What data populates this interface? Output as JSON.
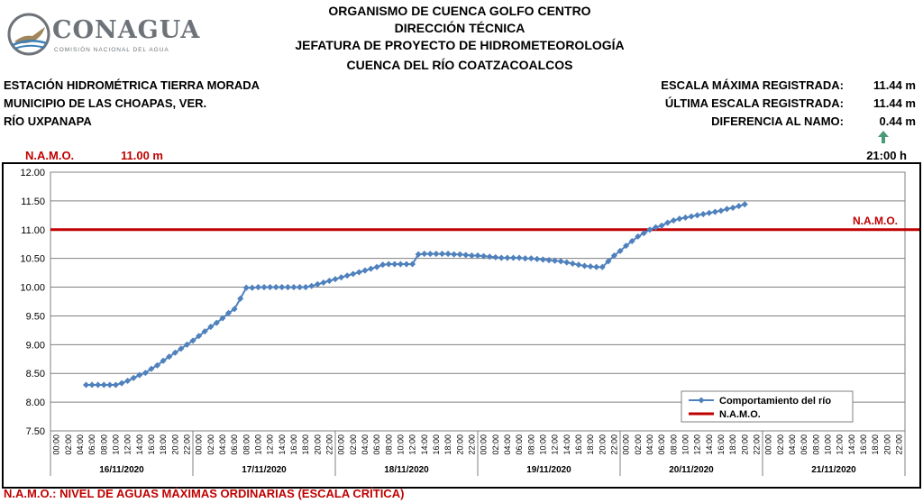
{
  "header": {
    "line1": "ORGANISMO DE CUENCA GOLFO CENTRO",
    "line2": "DIRECCIÓN TÉCNICA",
    "line3": "JEFATURA DE PROYECTO DE HIDROMETEOROLOGÍA",
    "line4": "CUENCA DEL RÍO COATZACOALCOS"
  },
  "logo": {
    "name": "CONAGUA",
    "subtitle": "COMISIÓN NACIONAL DEL AGUA",
    "icon": "conagua-bird-logo"
  },
  "station": {
    "name": "ESTACIÓN HIDROMÉTRICA TIERRA MORADA",
    "municipality": "MUNICIPIO DE LAS CHOAPAS, VER.",
    "river": "RÍO UXPANAPA"
  },
  "stats": {
    "max_label": "ESCALA MÁXIMA REGISTRADA:",
    "max_value": "11.44 m",
    "last_label": "ÚLTIMA ESCALA REGISTRADA:",
    "last_value": "11.44 m",
    "diff_label": "DIFERENCIA AL NAMO:",
    "diff_value": "0.44 m",
    "trend_icon": "arrow-up-icon",
    "time": "21:00 h"
  },
  "namo": {
    "label": "N.A.M.O.",
    "value": "11.00 m"
  },
  "footer": "N.A.M.O.: NIVEL DE AGUAS MÁXIMAS ORDINARIAS (ESCALA CRÍTICA)",
  "colors": {
    "series": "#4f81bd",
    "namo": "#c00000",
    "arrow": "#4a9a7a"
  },
  "chart_data": {
    "type": "line",
    "ylim": [
      7.5,
      12.0
    ],
    "yticks": [
      "7.50",
      "8.00",
      "8.50",
      "9.00",
      "9.50",
      "10.00",
      "10.50",
      "11.00",
      "11.50",
      "12.00"
    ],
    "hour_labels": [
      "00:00",
      "02:00",
      "04:00",
      "06:00",
      "08:00",
      "10:00",
      "12:00",
      "14:00",
      "16:00",
      "18:00",
      "20:00",
      "22:00"
    ],
    "dates": [
      "16/11/2020",
      "17/11/2020",
      "18/11/2020",
      "19/11/2020",
      "20/11/2020",
      "21/11/2020"
    ],
    "legend": {
      "position": "bottom-right",
      "series_label": "Comportamiento del río",
      "namo_label": "N.A.M.O."
    },
    "namo_line": {
      "label": "N.A.M.O.",
      "value": 11.0
    },
    "grid": true,
    "series": {
      "name": "Comportamiento del río",
      "start": "16/11/2020 06:00",
      "interval_hours": 1,
      "values": [
        8.3,
        8.3,
        8.3,
        8.3,
        8.3,
        8.3,
        8.33,
        8.37,
        8.42,
        8.47,
        8.51,
        8.58,
        8.64,
        8.72,
        8.79,
        8.86,
        8.93,
        9.0,
        9.07,
        9.15,
        9.23,
        9.31,
        9.38,
        9.46,
        9.55,
        9.62,
        9.8,
        9.99,
        9.99,
        10.0,
        10.0,
        10.0,
        10.0,
        10.0,
        10.0,
        10.0,
        10.0,
        10.0,
        10.02,
        10.05,
        10.08,
        10.11,
        10.14,
        10.17,
        10.2,
        10.23,
        10.26,
        10.29,
        10.32,
        10.35,
        10.39,
        10.4,
        10.4,
        10.4,
        10.4,
        10.4,
        10.57,
        10.58,
        10.58,
        10.58,
        10.58,
        10.58,
        10.57,
        10.57,
        10.56,
        10.55,
        10.55,
        10.54,
        10.53,
        10.52,
        10.51,
        10.51,
        10.51,
        10.51,
        10.5,
        10.5,
        10.49,
        10.48,
        10.47,
        10.46,
        10.45,
        10.43,
        10.41,
        10.39,
        10.37,
        10.36,
        10.35,
        10.35,
        10.45,
        10.55,
        10.63,
        10.72,
        10.8,
        10.88,
        10.94,
        11.0,
        11.04,
        11.07,
        11.12,
        11.16,
        11.19,
        11.21,
        11.23,
        11.25,
        11.27,
        11.29,
        11.31,
        11.33,
        11.36,
        11.38,
        11.41,
        11.44
      ]
    }
  }
}
